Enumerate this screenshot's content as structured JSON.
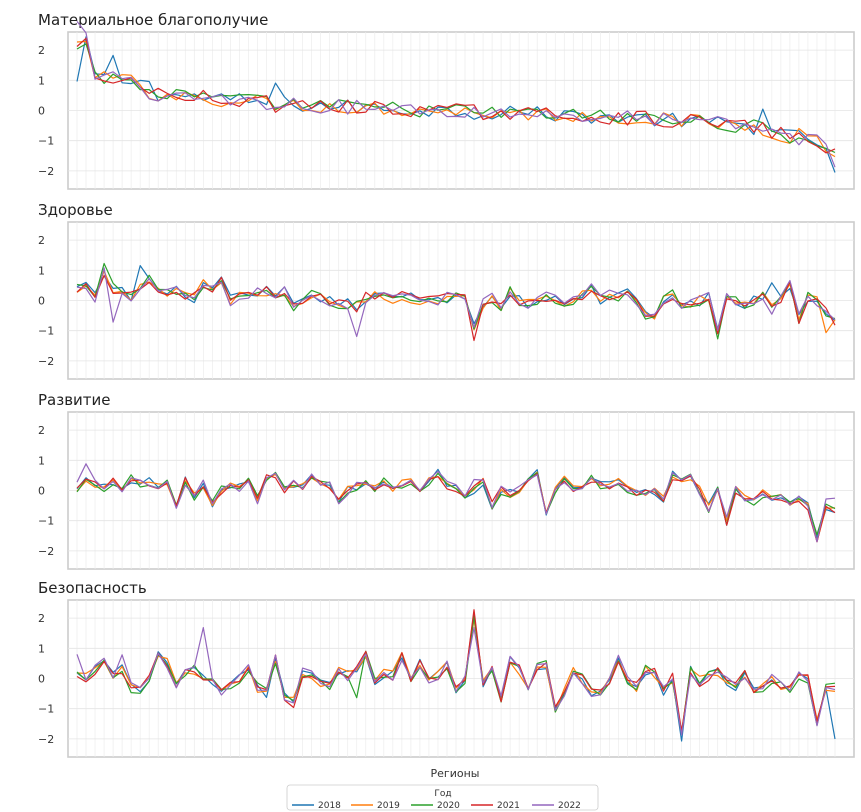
{
  "chart_data": {
    "type": "line",
    "xlabel": "Регионы",
    "legend": {
      "title": "Год",
      "placement": "bottom-center"
    },
    "grid": true,
    "n_regions": 85,
    "ylim": [
      -2.6,
      2.6
    ],
    "yticks": [
      2,
      1,
      0,
      -1,
      -2
    ],
    "series_meta": [
      {
        "name": "2018",
        "color": "#1f77b4"
      },
      {
        "name": "2019",
        "color": "#ff7f0e"
      },
      {
        "name": "2020",
        "color": "#2ca02c"
      },
      {
        "name": "2021",
        "color": "#d62728"
      },
      {
        "name": "2022",
        "color": "#9467bd"
      }
    ],
    "panels": [
      {
        "title": "Материальное благополучие",
        "trend": [
          2.1,
          2.2,
          1.2,
          1.1,
          1.05,
          1.0,
          0.95,
          0.85,
          0.6,
          0.55,
          0.52,
          0.5,
          0.47,
          0.45,
          0.42,
          0.4,
          0.37,
          0.35,
          0.32,
          0.3,
          0.28,
          0.26,
          0.24,
          0.22,
          0.2,
          0.19,
          0.17,
          0.16,
          0.14,
          0.13,
          0.12,
          0.1,
          0.09,
          0.08,
          0.07,
          0.06,
          0.05,
          0.04,
          0.03,
          0.02,
          0.0,
          -0.01,
          -0.02,
          -0.04,
          -0.05,
          -0.06,
          -0.07,
          -0.08,
          -0.09,
          -0.1,
          -0.11,
          -0.12,
          -0.13,
          -0.14,
          -0.15,
          -0.16,
          -0.17,
          -0.18,
          -0.2,
          -0.21,
          -0.22,
          -0.24,
          -0.25,
          -0.27,
          -0.29,
          -0.31,
          -0.33,
          -0.35,
          -0.37,
          -0.39,
          -0.41,
          -0.43,
          -0.45,
          -0.48,
          -0.5,
          -0.55,
          -0.6,
          -0.7,
          -0.8,
          -0.85,
          -0.9,
          -0.95,
          -1.0,
          -1.2,
          -1.5
        ],
        "noise": 0.25,
        "spikes": [
          [
            0,
            0,
            -1.2
          ],
          [
            0,
            4,
            0.6
          ],
          [
            0,
            8,
            0.5
          ],
          [
            0,
            22,
            0.6
          ],
          [
            0,
            48,
            0.4
          ],
          [
            0,
            76,
            0.8
          ],
          [
            0,
            84,
            -0.7
          ],
          [
            4,
            0,
            0.7
          ],
          [
            4,
            1,
            0.3
          ],
          [
            4,
            84,
            -0.3
          ],
          [
            3,
            22,
            -0.4
          ],
          [
            1,
            80,
            0.4
          ]
        ]
      },
      {
        "title": "Здоровье",
        "trend": [
          0.4,
          0.5,
          0.1,
          0.9,
          0.4,
          0.3,
          0.1,
          0.5,
          0.7,
          0.3,
          0.2,
          0.3,
          0.2,
          0.1,
          0.6,
          0.3,
          0.7,
          0.0,
          0.1,
          0.2,
          0.1,
          0.3,
          0.1,
          0.3,
          -0.2,
          -0.1,
          0.2,
          0.1,
          0.0,
          -0.1,
          -0.1,
          -0.2,
          0.1,
          0.2,
          0.1,
          0.0,
          0.2,
          0.1,
          0.0,
          0.1,
          0.0,
          0.1,
          0.2,
          0.1,
          -0.8,
          -0.1,
          0.1,
          -0.2,
          0.3,
          0.0,
          -0.1,
          0.0,
          0.1,
          0.0,
          -0.2,
          0.0,
          0.2,
          0.4,
          0.0,
          0.2,
          0.1,
          0.3,
          0.0,
          -0.5,
          -0.6,
          0.0,
          0.2,
          -0.1,
          -0.1,
          0.0,
          0.1,
          -1.1,
          0.1,
          0.0,
          -0.2,
          0.0,
          0.1,
          -0.3,
          0.1,
          0.5,
          -0.6,
          0.1,
          0.0,
          -0.4,
          -0.7
        ],
        "noise": 0.18,
        "spikes": [
          [
            4,
            4,
            -1.2
          ],
          [
            4,
            31,
            -1.0
          ],
          [
            3,
            44,
            -0.7
          ],
          [
            0,
            7,
            0.6
          ],
          [
            0,
            77,
            0.9
          ],
          [
            1,
            83,
            -0.8
          ],
          [
            2,
            3,
            0.3
          ],
          [
            4,
            20,
            0.2
          ]
        ]
      },
      {
        "title": "Развитие",
        "trend": [
          0.0,
          0.4,
          0.2,
          0.1,
          0.3,
          0.1,
          0.4,
          0.2,
          0.3,
          0.2,
          0.3,
          -0.5,
          0.3,
          -0.2,
          0.2,
          -0.4,
          0.0,
          0.1,
          0.1,
          0.3,
          -0.3,
          0.4,
          0.5,
          0.0,
          0.2,
          0.1,
          0.5,
          0.2,
          0.2,
          -0.3,
          0.0,
          0.1,
          0.2,
          0.1,
          0.3,
          0.1,
          0.2,
          0.3,
          -0.1,
          0.3,
          0.6,
          0.2,
          0.1,
          -0.2,
          0.0,
          0.3,
          -0.5,
          0.0,
          -0.1,
          0.0,
          0.3,
          0.6,
          -0.7,
          0.0,
          0.4,
          0.1,
          0.0,
          0.4,
          0.2,
          0.2,
          0.3,
          0.0,
          -0.1,
          -0.1,
          0.0,
          -0.3,
          0.5,
          0.3,
          0.4,
          0.0,
          -0.6,
          0.0,
          -1.0,
          0.0,
          -0.2,
          -0.4,
          -0.1,
          -0.3,
          -0.2,
          -0.4,
          -0.3,
          -0.5,
          -1.6,
          -0.6,
          -0.7
        ],
        "noise": 0.15,
        "spikes": [
          [
            4,
            0,
            0.3
          ],
          [
            4,
            1,
            0.4
          ],
          [
            4,
            31,
            0.3
          ],
          [
            4,
            44,
            0.3
          ],
          [
            4,
            83,
            0.3
          ],
          [
            4,
            84,
            0.3
          ],
          [
            0,
            70,
            0.2
          ],
          [
            1,
            82,
            -0.2
          ]
        ]
      },
      {
        "title": "Безопасность",
        "trend": [
          0.1,
          0.0,
          0.3,
          0.6,
          0.1,
          0.3,
          -0.3,
          -0.4,
          0.0,
          0.8,
          0.5,
          -0.3,
          0.2,
          0.3,
          0.0,
          -0.1,
          -0.4,
          -0.3,
          0.0,
          0.3,
          -0.3,
          -0.5,
          0.6,
          -0.6,
          -0.8,
          0.2,
          0.1,
          -0.2,
          -0.3,
          0.3,
          0.1,
          0.3,
          0.9,
          -0.1,
          0.2,
          0.1,
          0.7,
          0.0,
          0.5,
          -0.1,
          0.1,
          0.5,
          -0.3,
          0.0,
          2.1,
          -0.1,
          0.3,
          -0.6,
          0.6,
          0.3,
          -0.3,
          0.4,
          0.5,
          -1.0,
          -0.5,
          0.2,
          0.0,
          -0.5,
          -0.4,
          0.0,
          0.7,
          0.0,
          -0.3,
          0.3,
          0.2,
          -0.4,
          0.0,
          -1.8,
          0.3,
          -0.1,
          0.1,
          0.2,
          -0.1,
          -0.3,
          0.1,
          -0.4,
          -0.3,
          0.0,
          -0.2,
          -0.4,
          0.1,
          0.0,
          -1.5,
          -0.3,
          -0.3
        ],
        "noise": 0.18,
        "spikes": [
          [
            4,
            0,
            0.8
          ],
          [
            4,
            14,
            1.6
          ],
          [
            4,
            5,
            0.4
          ],
          [
            2,
            31,
            -0.9
          ],
          [
            0,
            84,
            -1.6
          ],
          [
            0,
            67,
            -0.4
          ],
          [
            4,
            44,
            -0.3
          ]
        ]
      }
    ]
  }
}
